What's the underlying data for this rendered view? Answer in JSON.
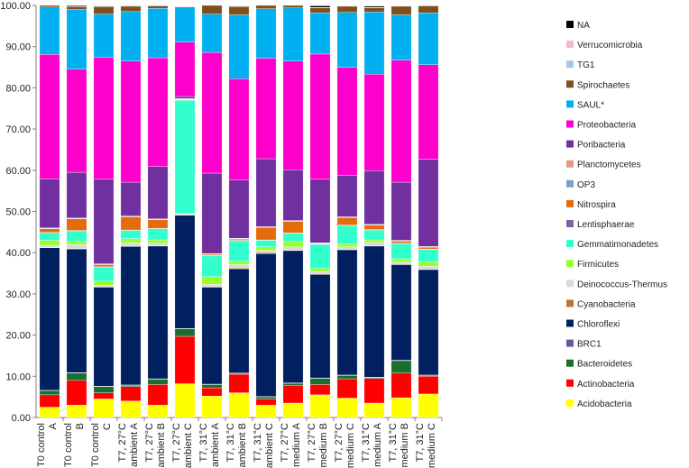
{
  "chart_data": {
    "type": "bar",
    "stacked": true,
    "ylim": [
      0,
      100
    ],
    "yticks": [
      "0.00",
      "10.00",
      "20.00",
      "30.00",
      "40.00",
      "50.00",
      "60.00",
      "70.00",
      "80.00",
      "90.00",
      "100.00"
    ],
    "grid": false,
    "legend_position": "right",
    "categories": [
      [
        "T0 control",
        "A"
      ],
      [
        "T0 control",
        "B"
      ],
      [
        "T0 control",
        "C"
      ],
      [
        "T7, 27°C",
        "ambient A"
      ],
      [
        "T7, 27°C",
        "ambient B"
      ],
      [
        "T7, 27°C",
        "ambient C"
      ],
      [
        "T7, 31°C",
        "ambient A"
      ],
      [
        "T7, 31°C",
        "ambient B"
      ],
      [
        "T7, 31°C",
        "ambient C"
      ],
      [
        "T7, 27°C",
        "medium A"
      ],
      [
        "T7, 27°C",
        "medium B"
      ],
      [
        "T7, 27°C",
        "medium C"
      ],
      [
        "T7, 31°C",
        "medium A"
      ],
      [
        "T7, 31°C",
        "medium B"
      ],
      [
        "T7, 31°C",
        "medium C"
      ]
    ],
    "series": [
      {
        "name": "Acidobacteria",
        "color": "#ffff00",
        "values": [
          2.5,
          3.0,
          4.5,
          4.0,
          3.0,
          8.2,
          5.2,
          6.0,
          3.0,
          3.5,
          5.5,
          4.7,
          3.5,
          4.8,
          5.7
        ]
      },
      {
        "name": "Actinobacteria",
        "color": "#ff0000",
        "values": [
          3.0,
          6.0,
          1.5,
          3.5,
          5.0,
          11.5,
          2.0,
          4.5,
          1.5,
          4.3,
          2.5,
          4.7,
          6.0,
          6.0,
          4.3
        ]
      },
      {
        "name": "Bacteroidetes",
        "color": "#1a6f2e",
        "values": [
          1.0,
          1.8,
          1.5,
          0.3,
          1.3,
          1.8,
          0.8,
          0.2,
          0.5,
          0.5,
          1.5,
          0.8,
          0.2,
          3.0,
          0.2
        ]
      },
      {
        "name": "BRC1",
        "color": "#655a9c",
        "values": [
          0.1,
          0.1,
          0.1,
          0.1,
          0.1,
          0.1,
          0.1,
          0.1,
          0.1,
          0.1,
          0.1,
          0.1,
          0.1,
          0.1,
          0.1
        ]
      },
      {
        "name": "Chloroflexi",
        "color": "#002060",
        "values": [
          34.6,
          30.0,
          24.0,
          33.6,
          32.2,
          27.5,
          23.5,
          25.3,
          34.7,
          32.1,
          25.1,
          30.4,
          31.8,
          23.2,
          25.6
        ]
      },
      {
        "name": "Cyanobacteria",
        "color": "#c0732c",
        "values": [
          0.1,
          0.1,
          0.2,
          0.1,
          0.1,
          0.1,
          0.2,
          0.2,
          0.2,
          0.1,
          0.2,
          0.1,
          0.1,
          0.1,
          0.1
        ]
      },
      {
        "name": "Deinococcus-Thermus",
        "color": "#d9d9d9",
        "values": [
          0.5,
          1.0,
          0.3,
          0.8,
          0.6,
          0.2,
          0.5,
          0.8,
          0.5,
          0.8,
          0.5,
          0.6,
          0.8,
          0.5,
          0.7
        ]
      },
      {
        "name": "Firmicutes",
        "color": "#99ff33",
        "values": [
          1.2,
          0.7,
          1.0,
          1.0,
          0.8,
          0.1,
          1.9,
          0.8,
          0.9,
          1.3,
          0.8,
          0.8,
          0.6,
          0.8,
          1.1
        ]
      },
      {
        "name": "Gemmatimonadetes",
        "color": "#33ffcc",
        "values": [
          1.8,
          2.6,
          3.4,
          2.0,
          2.7,
          27.5,
          5.0,
          5.0,
          1.6,
          2.0,
          5.8,
          4.4,
          2.4,
          3.7,
          3.0
        ]
      },
      {
        "name": "Lentisphaerae",
        "color": "#8064a2",
        "values": [
          0.1,
          0.1,
          0.1,
          0.1,
          0.1,
          0.1,
          0.1,
          0.1,
          0.1,
          0.1,
          0.1,
          0.1,
          0.1,
          0.1,
          0.1
        ]
      },
      {
        "name": "Nitrospira",
        "color": "#e46c0a",
        "values": [
          0.9,
          2.8,
          0.5,
          3.2,
          2.1,
          0.1,
          0.3,
          0.3,
          3.0,
          2.8,
          0.1,
          1.8,
          1.1,
          0.5,
          0.4
        ]
      },
      {
        "name": "OP3",
        "color": "#7f9fcf",
        "values": [
          0.1,
          0.1,
          0.1,
          0.1,
          0.1,
          0.1,
          0.1,
          0.1,
          0.1,
          0.1,
          0.1,
          0.1,
          0.1,
          0.1,
          0.1
        ]
      },
      {
        "name": "Planctomycetes",
        "color": "#e6958b",
        "values": [
          0.1,
          0.1,
          0.1,
          0.1,
          0.1,
          0.1,
          0.1,
          0.1,
          0.1,
          0.1,
          0.1,
          0.1,
          0.1,
          0.1,
          0.1
        ]
      },
      {
        "name": "Poribacteria",
        "color": "#7030a0",
        "values": [
          11.9,
          11.1,
          20.5,
          8.2,
          12.7,
          0.5,
          19.5,
          14.1,
          16.5,
          12.3,
          15.4,
          10.0,
          13.0,
          14.1,
          21.2
        ]
      },
      {
        "name": "Proteobacteria",
        "color": "#ff00cc",
        "values": [
          30.2,
          25.0,
          29.6,
          29.4,
          26.4,
          13.2,
          29.3,
          24.6,
          24.4,
          26.4,
          30.4,
          26.3,
          23.4,
          29.6,
          22.9
        ]
      },
      {
        "name": "SAUL*",
        "color": "#00b0f0",
        "values": [
          11.5,
          14.5,
          10.5,
          12.0,
          12.0,
          8.5,
          9.3,
          15.5,
          12.0,
          12.9,
          10.0,
          13.3,
          15.1,
          11.0,
          12.6
        ]
      },
      {
        "name": "Spirochaetes",
        "color": "#7f4f1d",
        "values": [
          1.2,
          0.7,
          1.8,
          1.3,
          0.6,
          0.1,
          2.2,
          2.0,
          1.0,
          0.6,
          1.2,
          1.5,
          1.0,
          2.1,
          1.7
        ]
      },
      {
        "name": "TG1",
        "color": "#a6c8e8",
        "values": [
          0.0,
          0.0,
          0.0,
          0.0,
          0.0,
          0.0,
          0.0,
          0.0,
          0.0,
          0.0,
          0.0,
          0.0,
          0.0,
          0.0,
          0.0
        ]
      },
      {
        "name": "Verrucomicrobia",
        "color": "#f4b8c0",
        "values": [
          0.1,
          0.1,
          0.1,
          0.1,
          0.1,
          0.1,
          0.1,
          0.1,
          0.1,
          0.1,
          0.1,
          0.1,
          0.1,
          0.1,
          0.1
        ]
      },
      {
        "name": "NA",
        "color": "#000000",
        "values": [
          0.0,
          0.2,
          0.1,
          0.1,
          0.0,
          0.0,
          0.0,
          0.1,
          0.1,
          0.0,
          0.4,
          0.0,
          0.3,
          0.0,
          0.0
        ]
      }
    ]
  }
}
